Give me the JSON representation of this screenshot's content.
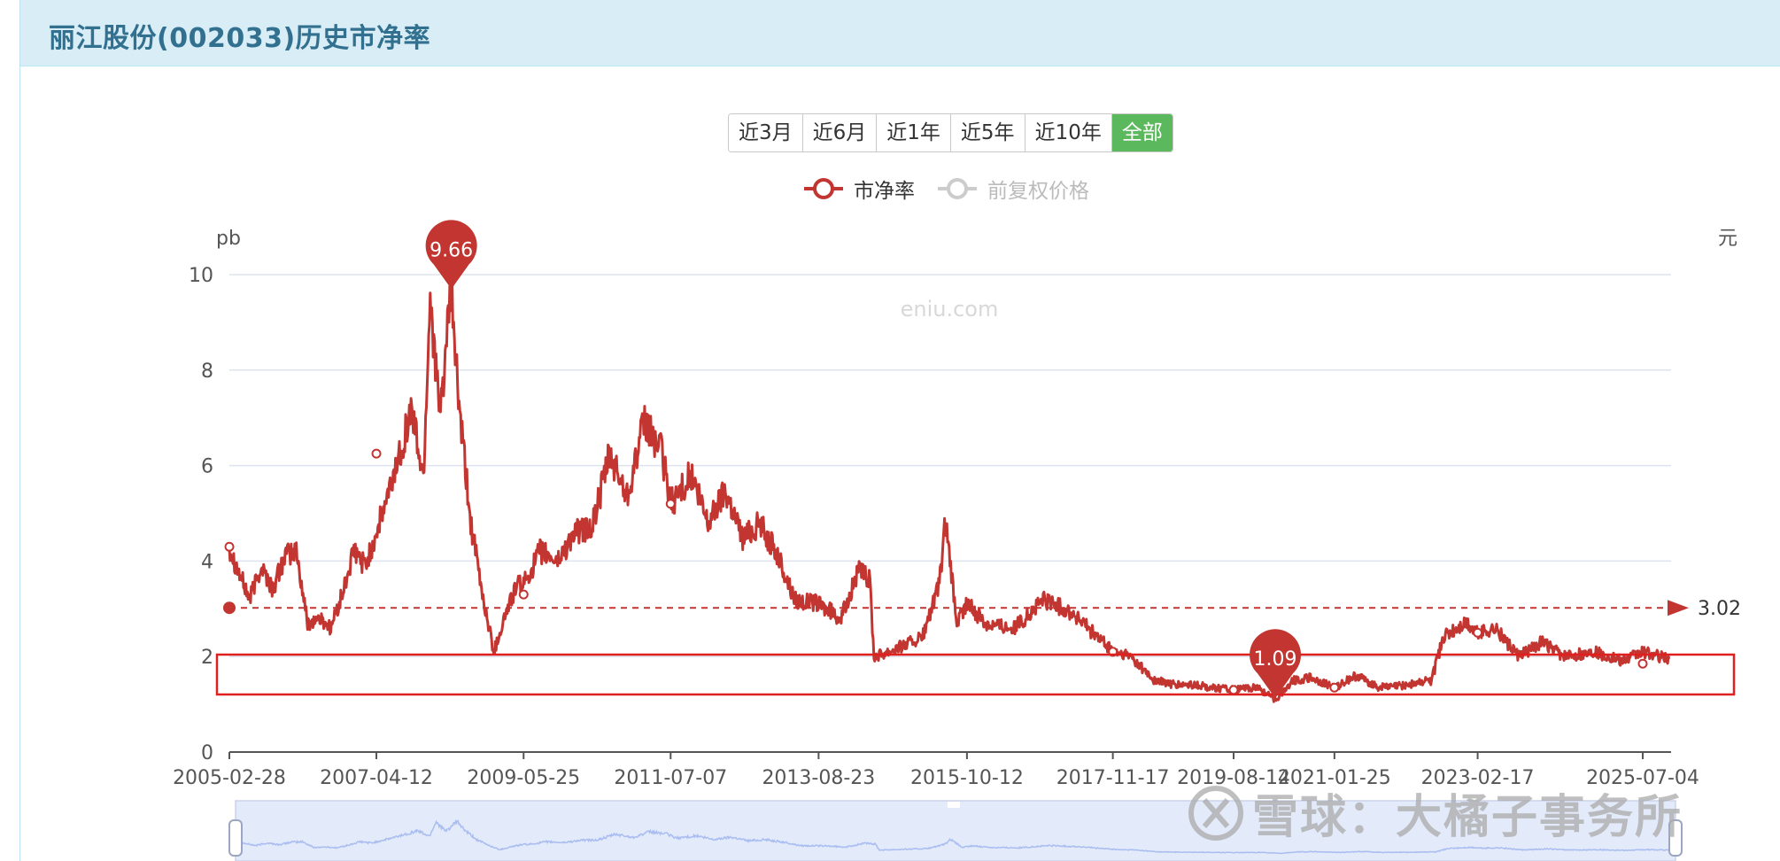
{
  "page": {
    "title": "丽江股份(002033)历史市净率"
  },
  "range_buttons": [
    "近3月",
    "近6月",
    "近1年",
    "近5年",
    "近10年",
    "全部"
  ],
  "range_active_index": 5,
  "legend": {
    "pb_label": "市净率",
    "price_label": "前复权价格",
    "pb_color": "#c23531",
    "price_color": "#bbbbbb"
  },
  "chart_data": {
    "type": "line",
    "y_axis_left_label": "pb",
    "y_axis_right_label": "元",
    "ylim": [
      0,
      10
    ],
    "y_ticks": [
      0,
      2,
      4,
      6,
      8,
      10
    ],
    "xlim": [
      "2005-02-28",
      "2025-11-30"
    ],
    "x_ticks": [
      "2005-02-28",
      "2007-04-12",
      "2009-05-25",
      "2011-07-07",
      "2013-08-23",
      "2015-10-12",
      "2017-11-17",
      "2019-08-14",
      "2021-01-25",
      "2023-02-17",
      "2025-07-04"
    ],
    "grid": true,
    "series": [
      {
        "name": "市净率",
        "color": "#c23531",
        "points": [
          [
            "2005-02-28",
            4.3
          ],
          [
            "2005-04-15",
            3.8
          ],
          [
            "2005-06-15",
            3.2
          ],
          [
            "2005-08-15",
            3.9
          ],
          [
            "2005-10-15",
            3.4
          ],
          [
            "2005-12-15",
            4.1
          ],
          [
            "2006-02-15",
            4.2
          ],
          [
            "2006-04-15",
            2.7
          ],
          [
            "2006-06-15",
            2.8
          ],
          [
            "2006-08-15",
            2.6
          ],
          [
            "2006-10-15",
            3.3
          ],
          [
            "2006-12-15",
            4.2
          ],
          [
            "2007-02-15",
            3.9
          ],
          [
            "2007-04-12",
            4.6
          ],
          [
            "2007-06-15",
            5.4
          ],
          [
            "2007-08-15",
            6.3
          ],
          [
            "2007-10-15",
            7.2
          ],
          [
            "2007-12-15",
            5.7
          ],
          [
            "2008-01-20",
            9.6
          ],
          [
            "2008-03-10",
            7.0
          ],
          [
            "2008-05-10",
            9.66
          ],
          [
            "2008-06-20",
            7.2
          ],
          [
            "2008-08-20",
            4.8
          ],
          [
            "2008-10-20",
            3.3
          ],
          [
            "2008-12-20",
            2.1
          ],
          [
            "2009-02-20",
            2.9
          ],
          [
            "2009-04-20",
            3.5
          ],
          [
            "2009-05-25",
            3.5
          ],
          [
            "2009-08-20",
            4.2
          ],
          [
            "2009-11-20",
            4.0
          ],
          [
            "2010-02-20",
            4.6
          ],
          [
            "2010-05-20",
            4.7
          ],
          [
            "2010-08-20",
            6.2
          ],
          [
            "2010-11-20",
            5.4
          ],
          [
            "2011-02-20",
            6.9
          ],
          [
            "2011-05-20",
            6.3
          ],
          [
            "2011-07-07",
            5.2
          ],
          [
            "2011-10-20",
            5.8
          ],
          [
            "2012-01-20",
            4.8
          ],
          [
            "2012-04-20",
            5.5
          ],
          [
            "2012-07-20",
            4.5
          ],
          [
            "2012-10-20",
            4.8
          ],
          [
            "2013-01-20",
            4.1
          ],
          [
            "2013-04-20",
            3.2
          ],
          [
            "2013-08-23",
            3.1
          ],
          [
            "2013-12-20",
            2.8
          ],
          [
            "2014-03-20",
            3.8
          ],
          [
            "2014-05-20",
            3.6
          ],
          [
            "2014-06-10",
            2.0
          ],
          [
            "2014-10-20",
            2.2
          ],
          [
            "2015-02-20",
            2.4
          ],
          [
            "2015-05-20",
            3.5
          ],
          [
            "2015-06-20",
            4.8
          ],
          [
            "2015-08-20",
            2.7
          ],
          [
            "2015-10-12",
            3.1
          ],
          [
            "2016-01-20",
            2.7
          ],
          [
            "2016-06-20",
            2.6
          ],
          [
            "2016-11-20",
            3.2
          ],
          [
            "2017-04-20",
            2.9
          ],
          [
            "2017-11-17",
            2.1
          ],
          [
            "2018-02-20",
            2.0
          ],
          [
            "2018-06-20",
            1.5
          ],
          [
            "2018-10-20",
            1.4
          ],
          [
            "2019-01-20",
            1.4
          ],
          [
            "2019-08-14",
            1.3
          ],
          [
            "2019-12-20",
            1.35
          ],
          [
            "2020-03-20",
            1.09
          ],
          [
            "2020-06-20",
            1.5
          ],
          [
            "2020-09-20",
            1.55
          ],
          [
            "2021-01-25",
            1.35
          ],
          [
            "2021-05-20",
            1.6
          ],
          [
            "2021-09-20",
            1.35
          ],
          [
            "2022-01-20",
            1.4
          ],
          [
            "2022-06-20",
            1.5
          ],
          [
            "2022-08-20",
            2.4
          ],
          [
            "2022-12-20",
            2.7
          ],
          [
            "2023-02-17",
            2.5
          ],
          [
            "2023-05-20",
            2.6
          ],
          [
            "2023-09-20",
            2.0
          ],
          [
            "2024-01-20",
            2.3
          ],
          [
            "2024-05-20",
            2.0
          ],
          [
            "2024-10-20",
            2.1
          ],
          [
            "2025-03-20",
            1.9
          ],
          [
            "2025-07-04",
            2.1
          ],
          [
            "2025-11-20",
            1.95
          ]
        ]
      }
    ],
    "markers": [
      {
        "label": "9.66",
        "date": "2008-05-10",
        "value": 9.66
      },
      {
        "label": "1.09",
        "date": "2020-03-20",
        "value": 1.09
      }
    ],
    "reference_line": {
      "value": 3.02,
      "label": "3.02"
    },
    "watermark": "eniu.com"
  },
  "overlay_watermark": {
    "text": "雪球：大橘子事务所"
  }
}
